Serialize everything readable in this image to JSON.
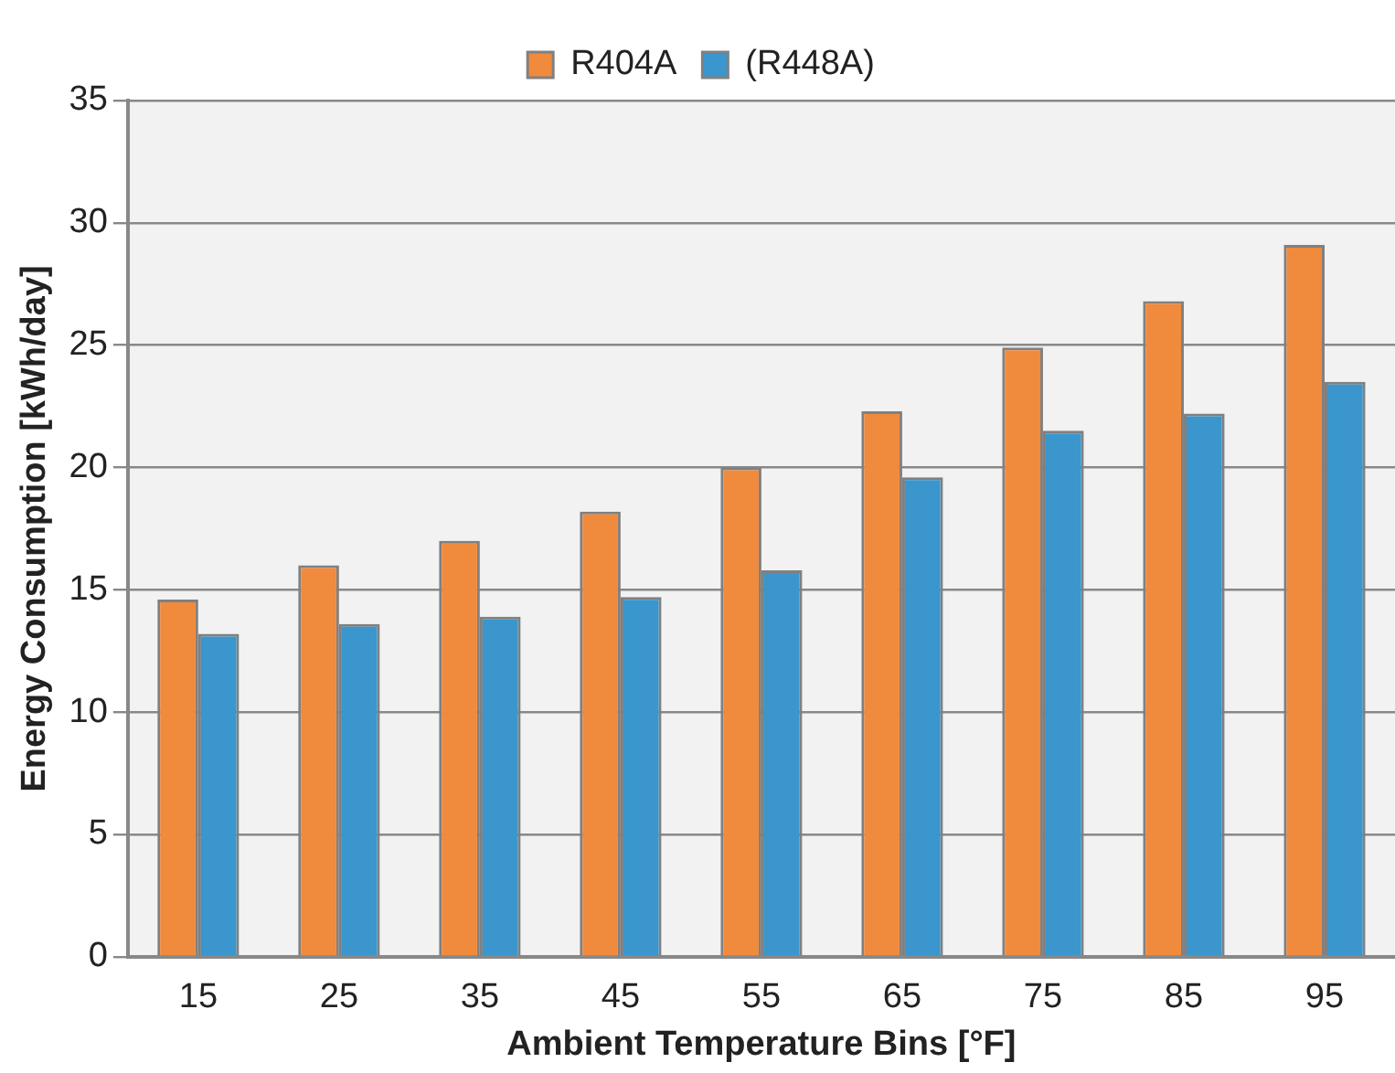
{
  "chart_data": {
    "type": "bar",
    "xlabel": "Ambient Temperature Bins [°F]",
    "ylabel": "Energy Consumption [kWh/day]",
    "categories": [
      "15",
      "25",
      "35",
      "45",
      "55",
      "65",
      "75",
      "85",
      "95"
    ],
    "series": [
      {
        "name": "R404A",
        "color": "#f08a3c",
        "values": [
          14.6,
          16.0,
          17.0,
          18.2,
          20.0,
          22.3,
          24.9,
          26.8,
          29.1
        ]
      },
      {
        "name": "(R448A)",
        "color": "#3a96cc",
        "values": [
          13.2,
          13.6,
          13.9,
          14.7,
          15.8,
          19.6,
          21.5,
          22.2,
          23.5
        ]
      }
    ],
    "ylim": [
      0,
      35
    ],
    "yticks": [
      0,
      5,
      10,
      15,
      20,
      25,
      30,
      35
    ],
    "grid": "y",
    "legend": "top"
  }
}
